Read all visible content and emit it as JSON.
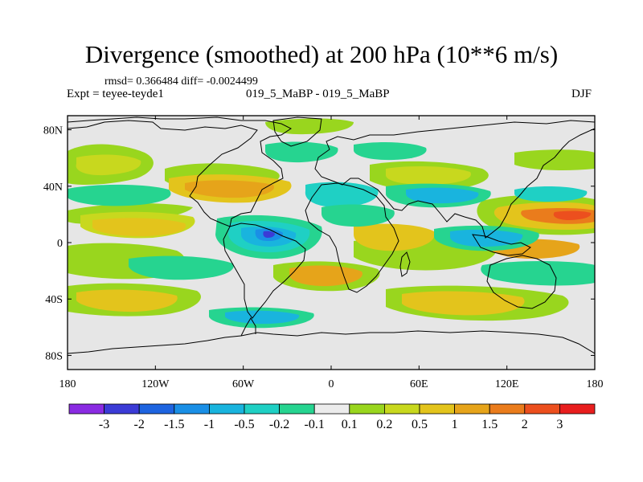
{
  "title": "Divergence (smoothed) at 200 hPa (10**6 m/s)",
  "stats": "rmsd= 0.366484 diff= -0.0024499",
  "experiment": "Expt = teyee-teyde1",
  "case_pair": "019_5_MaBP - 019_5_MaBP",
  "season": "DJF",
  "map": {
    "x_ticks": [
      "180",
      "120W",
      "60W",
      "0",
      "60E",
      "120E",
      "180"
    ],
    "y_ticks": [
      "80N",
      "40N",
      "0",
      "40S",
      "80S"
    ],
    "background_fill": "#e6e6e6",
    "outline_color": "#000000"
  },
  "colorbar": {
    "colors": [
      "#8a2be2",
      "#3b3bd6",
      "#1e64e0",
      "#1a8fe6",
      "#19b4de",
      "#1fd0c4",
      "#26d490",
      "#ececec",
      "#99d61e",
      "#c8d81e",
      "#e3c41c",
      "#e6a41a",
      "#ea7c1c",
      "#ec4f1e",
      "#e81e1e"
    ],
    "labels": [
      "-3",
      "-2",
      "-1.5",
      "-1",
      "-0.5",
      "-0.2",
      "-0.1",
      "0.1",
      "0.2",
      "0.5",
      "1",
      "1.5",
      "2",
      "3"
    ]
  }
}
